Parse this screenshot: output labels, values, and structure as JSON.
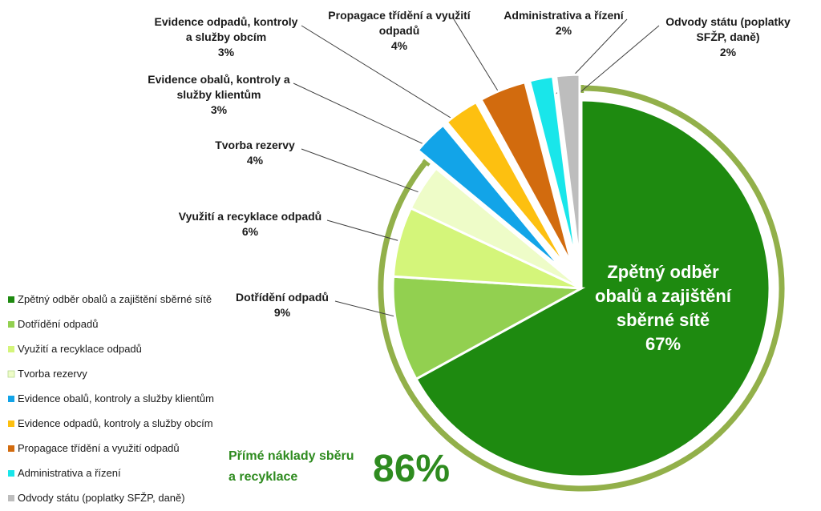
{
  "chart_data": {
    "type": "pie",
    "title": "",
    "slices": [
      {
        "label_lines": [
          "Zpětný odběr",
          "obalů a zajištění",
          "sběrné sítě"
        ],
        "legend": "Zpětný odběr obalů a zajištění sběrné sítě",
        "value": 67,
        "color": "#1e8a10"
      },
      {
        "label_lines": [
          "Dotřídění odpadů"
        ],
        "legend": "Dotřídění odpadů",
        "value": 9,
        "color": "#92d050"
      },
      {
        "label_lines": [
          "Využití a recyklace odpadů"
        ],
        "legend": "Využití a recyklace odpadů",
        "value": 6,
        "color": "#d4f57a"
      },
      {
        "label_lines": [
          "Tvorba rezervy"
        ],
        "legend": "Tvorba rezervy",
        "value": 4,
        "color": "#eefcc8"
      },
      {
        "label_lines": [
          "Evidence obalů, kontroly a",
          "služby klientům"
        ],
        "legend": "Evidence obalů, kontroly a služby klientům",
        "value": 3,
        "color": "#12a4e8"
      },
      {
        "label_lines": [
          "Evidence odpadů, kontroly",
          "a služby obcím"
        ],
        "legend": "Evidence odpadů, kontroly a služby obcím",
        "value": 3,
        "color": "#fdc010"
      },
      {
        "label_lines": [
          "Propagace třídění a využití",
          "odpadů"
        ],
        "legend": "Propagace třídění a využití odpadů",
        "value": 4,
        "color": "#d26b0e"
      },
      {
        "label_lines": [
          "Administrativa a řízení"
        ],
        "legend": "Administrativa a řízení",
        "value": 2,
        "color": "#19e6ea"
      },
      {
        "label_lines": [
          "Odvody státu (poplatky",
          "SFŽP, daně)"
        ],
        "legend": "Odvody státu (poplatky SFŽP, daně)",
        "value": 2,
        "color": "#bdbdbd"
      }
    ],
    "value_suffix": "%",
    "legend_placement": "bottom-left",
    "annotation": {
      "lines": [
        "Přímé náklady sběru",
        "a recyklace"
      ],
      "value": "86%",
      "color": "#2e8b1f",
      "bracket_color": "#92b04a"
    }
  }
}
